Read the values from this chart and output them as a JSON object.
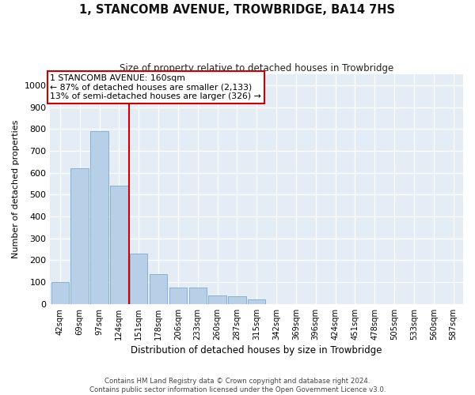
{
  "title": "1, STANCOMB AVENUE, TROWBRIDGE, BA14 7HS",
  "subtitle": "Size of property relative to detached houses in Trowbridge",
  "xlabel": "Distribution of detached houses by size in Trowbridge",
  "ylabel": "Number of detached properties",
  "bar_color": "#b8cfe8",
  "bar_edgecolor": "#7aaacf",
  "background_color": "#e4ecf5",
  "categories": [
    "42sqm",
    "69sqm",
    "97sqm",
    "124sqm",
    "151sqm",
    "178sqm",
    "206sqm",
    "233sqm",
    "260sqm",
    "287sqm",
    "315sqm",
    "342sqm",
    "369sqm",
    "396sqm",
    "424sqm",
    "451sqm",
    "478sqm",
    "505sqm",
    "533sqm",
    "560sqm",
    "587sqm"
  ],
  "values": [
    100,
    620,
    790,
    540,
    230,
    135,
    75,
    75,
    40,
    35,
    20,
    0,
    0,
    0,
    0,
    0,
    0,
    0,
    0,
    0,
    0
  ],
  "ylim": [
    0,
    1050
  ],
  "yticks": [
    0,
    100,
    200,
    300,
    400,
    500,
    600,
    700,
    800,
    900,
    1000
  ],
  "vline_x": 3.5,
  "vline_color": "#cc0000",
  "annotation_title": "1 STANCOMB AVENUE: 160sqm",
  "annotation_line2": "← 87% of detached houses are smaller (2,133)",
  "annotation_line3": "13% of semi-detached houses are larger (326) →",
  "annotation_box_color": "#cc0000",
  "footer_line1": "Contains HM Land Registry data © Crown copyright and database right 2024.",
  "footer_line2": "Contains public sector information licensed under the Open Government Licence v3.0."
}
